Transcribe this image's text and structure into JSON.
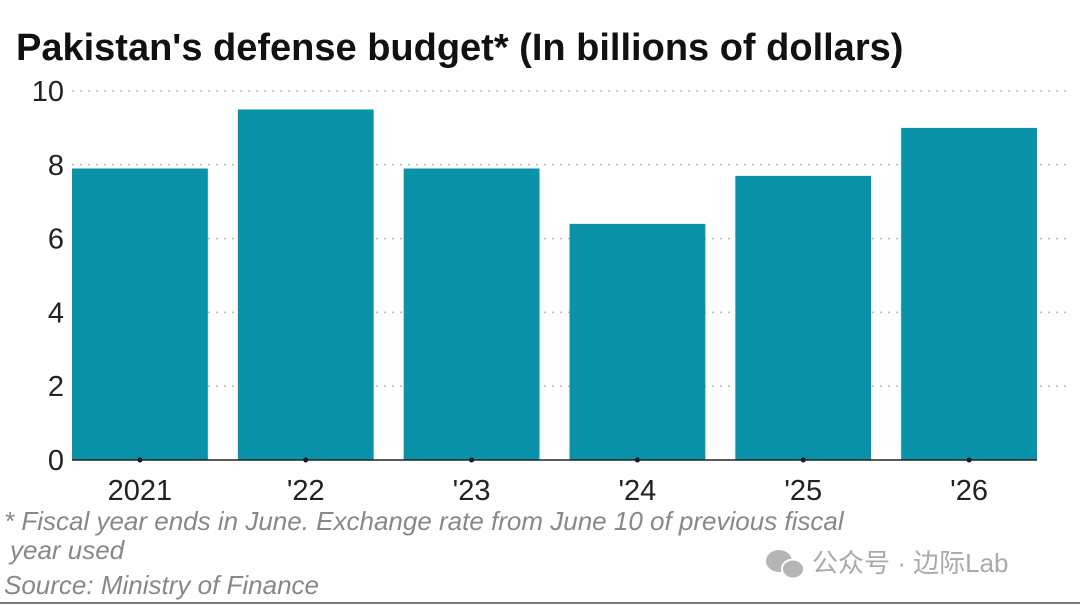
{
  "chart_data": {
    "type": "bar",
    "title": "Pakistan's defense budget* (In billions of dollars)",
    "categories": [
      "2021",
      "'22",
      "'23",
      "'24",
      "'25",
      "'26"
    ],
    "values": [
      7.9,
      9.5,
      7.9,
      6.4,
      7.7,
      9.0
    ],
    "xlabel": "",
    "ylabel": "",
    "ylim": [
      0,
      10
    ],
    "yticks": [
      "0",
      "2",
      "4",
      "6",
      "8",
      "10"
    ],
    "grid": "horizontal dotted",
    "bar_color": "#0a93a8"
  },
  "footnote_line1": "* Fiscal year ends in June. Exchange rate from June 10 of previous fiscal",
  "footnote_line2": "year used",
  "source": "Source: Ministry of Finance",
  "watermark": "公众号 · 边际Lab"
}
